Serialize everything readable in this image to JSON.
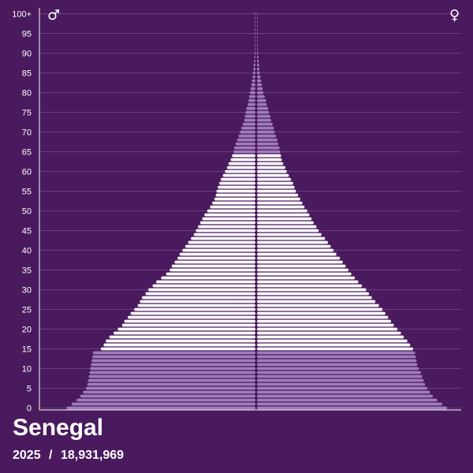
{
  "chart_data": {
    "type": "bar",
    "subtype": "population-pyramid",
    "title": "Senegal",
    "year": "2025",
    "population": "18,931,969",
    "separator": "/",
    "male_symbol": "♂",
    "female_symbol": "♀",
    "y_tick_labels": [
      "0",
      "5",
      "10",
      "15",
      "20",
      "25",
      "30",
      "35",
      "40",
      "45",
      "50",
      "55",
      "60",
      "65",
      "70",
      "75",
      "80",
      "85",
      "90",
      "95",
      "100+"
    ],
    "ages": [
      "0",
      "1",
      "2",
      "3",
      "4",
      "5",
      "6",
      "7",
      "8",
      "9",
      "10",
      "11",
      "12",
      "13",
      "14",
      "15",
      "16",
      "17",
      "18",
      "19",
      "20",
      "21",
      "22",
      "23",
      "24",
      "25",
      "26",
      "27",
      "28",
      "29",
      "30",
      "31",
      "32",
      "33",
      "34",
      "35",
      "36",
      "37",
      "38",
      "39",
      "40",
      "41",
      "42",
      "43",
      "44",
      "45",
      "46",
      "47",
      "48",
      "49",
      "50",
      "51",
      "52",
      "53",
      "54",
      "55",
      "56",
      "57",
      "58",
      "59",
      "60",
      "61",
      "62",
      "63",
      "64",
      "65",
      "66",
      "67",
      "68",
      "69",
      "70",
      "71",
      "72",
      "73",
      "74",
      "75",
      "76",
      "77",
      "78",
      "79",
      "80",
      "81",
      "82",
      "83",
      "84",
      "85",
      "86",
      "87",
      "88",
      "89",
      "90",
      "91",
      "92",
      "93",
      "94",
      "95",
      "96",
      "97",
      "98",
      "99",
      "100+"
    ],
    "series": [
      {
        "name": "♂",
        "values": [
          2.66,
          2.59,
          2.52,
          2.47,
          2.43,
          2.39,
          2.37,
          2.36,
          2.35,
          2.34,
          2.33,
          2.32,
          2.31,
          2.3,
          2.29,
          2.18,
          2.14,
          2.11,
          2.06,
          2.0,
          1.94,
          1.88,
          1.85,
          1.8,
          1.76,
          1.71,
          1.66,
          1.63,
          1.6,
          1.55,
          1.51,
          1.45,
          1.4,
          1.33,
          1.26,
          1.21,
          1.18,
          1.14,
          1.1,
          1.07,
          1.03,
          0.99,
          0.95,
          0.91,
          0.87,
          0.84,
          0.81,
          0.78,
          0.75,
          0.72,
          0.68,
          0.64,
          0.61,
          0.58,
          0.56,
          0.55,
          0.53,
          0.51,
          0.49,
          0.46,
          0.43,
          0.4,
          0.38,
          0.35,
          0.33,
          0.31,
          0.3,
          0.28,
          0.26,
          0.24,
          0.22,
          0.2,
          0.18,
          0.16,
          0.15,
          0.14,
          0.13,
          0.11,
          0.1,
          0.09,
          0.08,
          0.07,
          0.06,
          0.05,
          0.04,
          0.035,
          0.03,
          0.025,
          0.02,
          0.015,
          0.012,
          0.01,
          0.008,
          0.006,
          0.005,
          0.004,
          0.003,
          0.002,
          0.002,
          0.002,
          0.002
        ]
      },
      {
        "name": "♀",
        "values": [
          2.68,
          2.61,
          2.54,
          2.48,
          2.44,
          2.4,
          2.37,
          2.35,
          2.33,
          2.31,
          2.28,
          2.26,
          2.25,
          2.24,
          2.23,
          2.2,
          2.16,
          2.12,
          2.07,
          2.03,
          1.98,
          1.93,
          1.89,
          1.85,
          1.81,
          1.77,
          1.72,
          1.67,
          1.62,
          1.58,
          1.54,
          1.48,
          1.43,
          1.38,
          1.33,
          1.29,
          1.25,
          1.21,
          1.17,
          1.12,
          1.08,
          1.04,
          1.0,
          0.96,
          0.91,
          0.87,
          0.84,
          0.8,
          0.77,
          0.74,
          0.71,
          0.67,
          0.64,
          0.61,
          0.58,
          0.55,
          0.53,
          0.51,
          0.48,
          0.45,
          0.42,
          0.4,
          0.37,
          0.35,
          0.34,
          0.33,
          0.32,
          0.3,
          0.29,
          0.27,
          0.25,
          0.24,
          0.22,
          0.2,
          0.19,
          0.17,
          0.16,
          0.14,
          0.13,
          0.11,
          0.09,
          0.08,
          0.07,
          0.06,
          0.05,
          0.04,
          0.035,
          0.03,
          0.025,
          0.02,
          0.015,
          0.012,
          0.01,
          0.008,
          0.006,
          0.005,
          0.004,
          0.003,
          0.002,
          0.002,
          0.002
        ]
      }
    ],
    "xlim": [
      -2.7,
      2.7
    ],
    "highlight_age_ranges": [
      [
        0,
        14
      ],
      [
        65,
        100
      ]
    ],
    "colors": {
      "background": "#4a1a5e",
      "highlight": "#a07bbd",
      "bar": "#ffffff",
      "grid": "#6a3d80",
      "axis": "#ffffff"
    },
    "grid": true
  }
}
